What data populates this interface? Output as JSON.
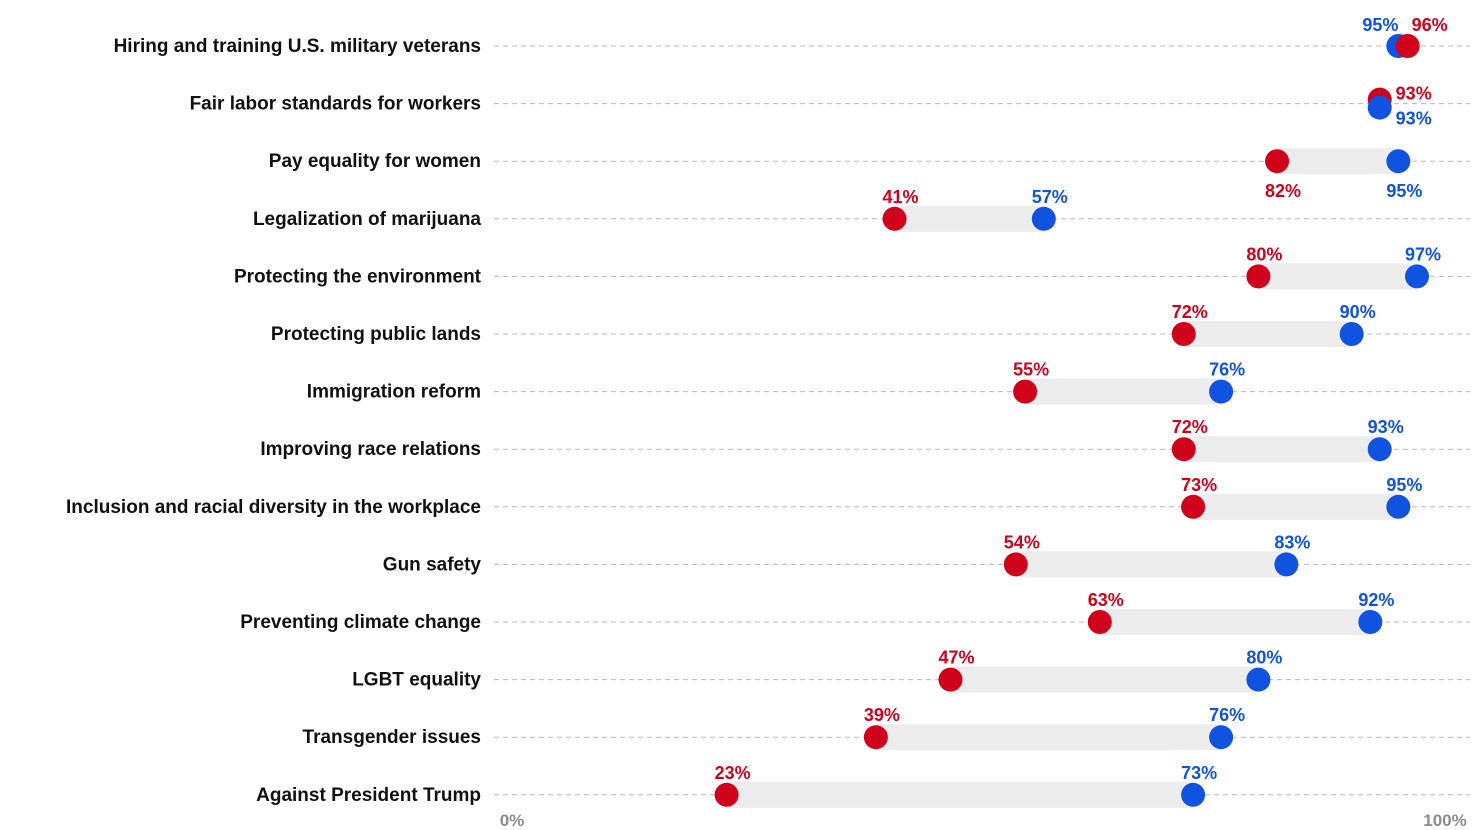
{
  "chart_data": {
    "type": "dot-range",
    "categories": [
      "Hiring and training U.S. military veterans",
      "Fair labor standards for workers",
      "Pay equality for women",
      "Legalization of marijuana",
      "Protecting the environment",
      "Protecting public lands",
      "Immigration reform",
      "Improving race relations",
      "Inclusion and racial diversity in the workplace",
      "Gun safety",
      "Preventing climate change",
      "LGBT equality",
      "Transgender issues",
      "Against President Trump"
    ],
    "series": [
      {
        "color": "#d0021b",
        "values": [
          96,
          93,
          82,
          41,
          80,
          72,
          55,
          72,
          73,
          54,
          63,
          47,
          39,
          23
        ]
      },
      {
        "color": "#1053e0",
        "values": [
          95,
          93,
          95,
          57,
          97,
          90,
          76,
          93,
          95,
          83,
          92,
          80,
          76,
          73
        ]
      }
    ],
    "labels": {
      "red": [
        "96%",
        "93%",
        "82%",
        "41%",
        "80%",
        "72%",
        "55%",
        "72%",
        "73%",
        "54%",
        "63%",
        "47%",
        "39%",
        "23%"
      ],
      "blue": [
        "95%",
        "93%",
        "95%",
        "57%",
        "97%",
        "90%",
        "76%",
        "93%",
        "95%",
        "83%",
        "92%",
        "80%",
        "76%",
        "73%"
      ]
    },
    "xlim": [
      0,
      100
    ],
    "x_tick_labels": [
      "0%",
      "100%"
    ],
    "range_bar_color": "#ececec",
    "grid": "dashed"
  }
}
